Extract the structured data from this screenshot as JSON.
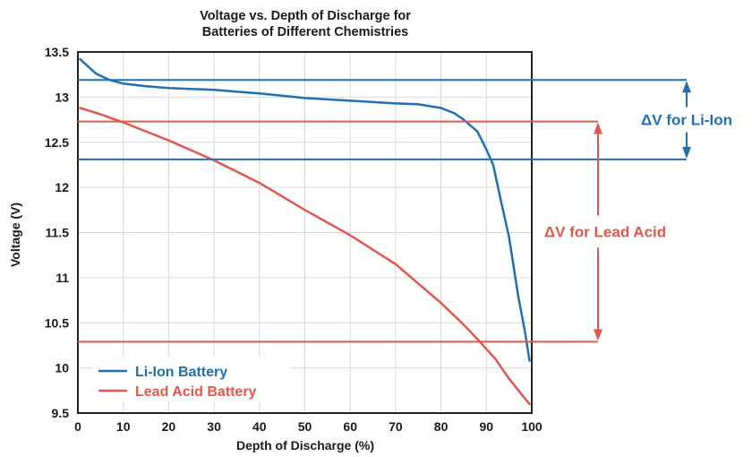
{
  "chart_data": {
    "type": "line",
    "title_lines": [
      "Voltage vs. Depth of Discharge for",
      "Batteries of Different Chemistries"
    ],
    "xlabel": "Depth of Discharge (%)",
    "ylabel": "Voltage (V)",
    "xlim": [
      0,
      100
    ],
    "ylim": [
      9.5,
      13.5
    ],
    "x_ticks": [
      "0",
      "10",
      "20",
      "30",
      "40",
      "50",
      "60",
      "70",
      "80",
      "90",
      "100"
    ],
    "y_ticks": [
      "9.5",
      "10",
      "10.5",
      "11",
      "11.5",
      "12",
      "12.5",
      "13",
      "13.5"
    ],
    "grid": true,
    "legend_position": "bottom-left",
    "series": [
      {
        "name": "Li-Ion Battery",
        "color": "#1f6fb4",
        "x": [
          0.5,
          2,
          4,
          7,
          10,
          15,
          20,
          30,
          40,
          50,
          60,
          70,
          75,
          80,
          83,
          85,
          88,
          90,
          91.5,
          93,
          95,
          97,
          98.5,
          99.5
        ],
        "y": [
          13.42,
          13.35,
          13.26,
          13.19,
          13.15,
          13.12,
          13.1,
          13.08,
          13.04,
          12.99,
          12.96,
          12.93,
          12.92,
          12.88,
          12.82,
          12.75,
          12.62,
          12.42,
          12.25,
          11.9,
          11.45,
          10.8,
          10.4,
          10.08
        ]
      },
      {
        "name": "Lead Acid Battery",
        "color": "#e2574c",
        "x": [
          0.5,
          5,
          10,
          20,
          30,
          40,
          50,
          60,
          70,
          80,
          85,
          88,
          92,
          95,
          99.5
        ],
        "y": [
          12.88,
          12.81,
          12.72,
          12.52,
          12.3,
          12.05,
          11.75,
          11.47,
          11.15,
          10.72,
          10.48,
          10.32,
          10.1,
          9.88,
          9.6
        ]
      }
    ],
    "reference_lines": [
      {
        "series": "Li-Ion Battery",
        "y": 13.19,
        "color": "#1f6fb4"
      },
      {
        "series": "Li-Ion Battery",
        "y": 12.31,
        "color": "#1f6fb4"
      },
      {
        "series": "Lead Acid Battery",
        "y": 12.73,
        "color": "#e2574c"
      },
      {
        "series": "Lead Acid Battery",
        "y": 10.29,
        "color": "#e2574c"
      }
    ],
    "annotations": [
      {
        "text": "ΔV for Li-Ion",
        "color": "#1f6fb4",
        "y_from": 12.31,
        "y_to": 13.19
      },
      {
        "text": "ΔV for Lead Acid",
        "color": "#e2574c",
        "y_from": 10.29,
        "y_to": 12.73
      }
    ]
  }
}
